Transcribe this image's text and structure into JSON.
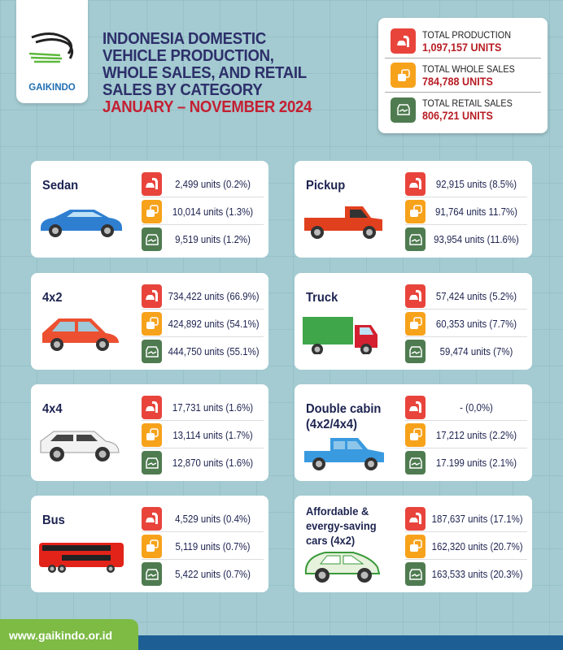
{
  "brand": {
    "name": "GAIKINDO",
    "website": "www.gaikindo.or.id"
  },
  "title": {
    "lines": [
      "INDONESIA DOMESTIC",
      "VEHICLE PRODUCTION,",
      "WHOLE SALES, AND RETAIL",
      "SALES BY CATEGORY"
    ],
    "period": "JANUARY – NOVEMBER  2024"
  },
  "colors": {
    "production": "#e8443c",
    "wholesales": "#f7a21b",
    "retail": "#4f7b50",
    "title": "#2d2f6a",
    "accent": "#c42032"
  },
  "totals": [
    {
      "label": "TOTAL PRODUCTION",
      "value": "1,097,157 UNITS",
      "icon": "production-icon",
      "kind": "production"
    },
    {
      "label": "TOTAL WHOLE SALES",
      "value": "784,788 UNITS",
      "icon": "wholesales-icon",
      "kind": "wholesales"
    },
    {
      "label": "TOTAL RETAIL SALES",
      "value": "806,721 UNITS",
      "icon": "retail-handshake-icon",
      "kind": "retail"
    }
  ],
  "categories": [
    {
      "name": "Sedan",
      "vehicle": "sedan",
      "color": "#2f7fd1",
      "stats": [
        "2,499 units (0.2%)",
        "10,014 units (1.3%)",
        "9,519 units (1.2%)"
      ]
    },
    {
      "name": "Pickup",
      "vehicle": "pickup",
      "color": "#e0401e",
      "stats": [
        "92,915 units (8.5%)",
        "91,764 units 11.7%)",
        "93,954 units (11.6%)"
      ]
    },
    {
      "name": "4x2",
      "vehicle": "hatchback",
      "color": "#ec5030",
      "stats": [
        "734,422 units (66.9%)",
        "424,892 units (54.1%)",
        "444,750 units (55.1%)"
      ]
    },
    {
      "name": "Truck",
      "vehicle": "truck",
      "color": "#3fa64a",
      "stats": [
        "57,424 units (5.2%)",
        "60,353 units (7.7%)",
        "59,474 units (7%)"
      ]
    },
    {
      "name": "4x4",
      "vehicle": "suv",
      "color": "#f2f2f2",
      "stats": [
        "17,731 units (1.6%)",
        "13,114 units (1.7%)",
        "12,870 units (1.6%)"
      ]
    },
    {
      "name": "Double cabin\n(4x2/4x4)",
      "vehicle": "double-cabin",
      "color": "#3a9ae0",
      "stats": [
        "- (0,0%)",
        "17,212 units (2.2%)",
        "17.199 units (2.1%)"
      ]
    },
    {
      "name": "Bus",
      "vehicle": "bus",
      "color": "#e2231a",
      "stats": [
        "4,529 units (0.4%)",
        "5,119 units (0.7%)",
        "5,422 units (0.7%)"
      ]
    },
    {
      "name": "Affordable &\nevergy-saving\ncars (4x2)",
      "vehicle": "eco-car",
      "color": "#e6f2dc",
      "stats": [
        "187,637 units (17.1%)",
        "162,320 units (20.7%)",
        "163,533 units (20.3%)"
      ]
    }
  ]
}
